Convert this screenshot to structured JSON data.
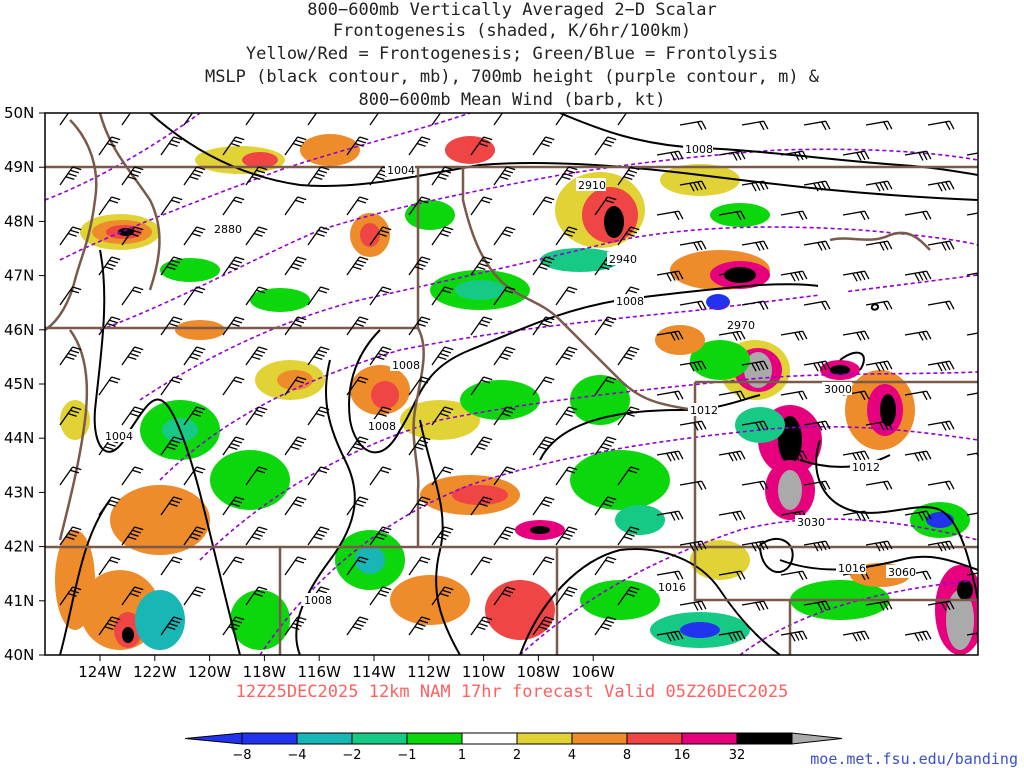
{
  "title": {
    "lines": [
      "800−600mb Vertically Averaged 2−D Scalar",
      "Frontogenesis (shaded, K/6hr/100km)",
      "Yellow/Red = Frontogenesis;  Green/Blue = Frontolysis",
      "MSLP (black contour, mb), 700mb height (purple contour, m) &",
      "800−600mb Mean Wind (barb, kt)"
    ]
  },
  "valid_line": "12Z25DEC2025 12km NAM 17hr forecast Valid 05Z26DEC2025",
  "credit": "moe.met.fsu.edu/banding",
  "map": {
    "lat_labels": [
      "50N",
      "49N",
      "48N",
      "47N",
      "46N",
      "45N",
      "44N",
      "43N",
      "42N",
      "41N",
      "40N"
    ],
    "lon_labels": [
      "124W",
      "122W",
      "120W",
      "118W",
      "116W",
      "114W",
      "112W",
      "110W",
      "108W",
      "106W"
    ],
    "pressure_labels": [
      "1004",
      "1004",
      "1008",
      "1008",
      "1008",
      "1008",
      "1008",
      "1012",
      "1012",
      "1016",
      "1016"
    ],
    "height_labels": [
      "2880",
      "2910",
      "2940",
      "2970",
      "3000",
      "3030",
      "3060"
    ]
  },
  "colorbar": {
    "labels": [
      "−8",
      "−4",
      "−2",
      "−1",
      "1",
      "2",
      "4",
      "8",
      "16",
      "32"
    ],
    "colors": [
      "#2233ee",
      "#19b6b6",
      "#16c985",
      "#0cd70c",
      "#ffffff",
      "#e1d236",
      "#ee8b2a",
      "#f04545",
      "#e6007e",
      "#000000"
    ],
    "end_low": "#2233ee",
    "end_high": "#aaaaaa"
  },
  "colors": {
    "pressure": "#000000",
    "height": "#9400d3",
    "borders": "#7a5a4a",
    "barbs": "#000000"
  }
}
